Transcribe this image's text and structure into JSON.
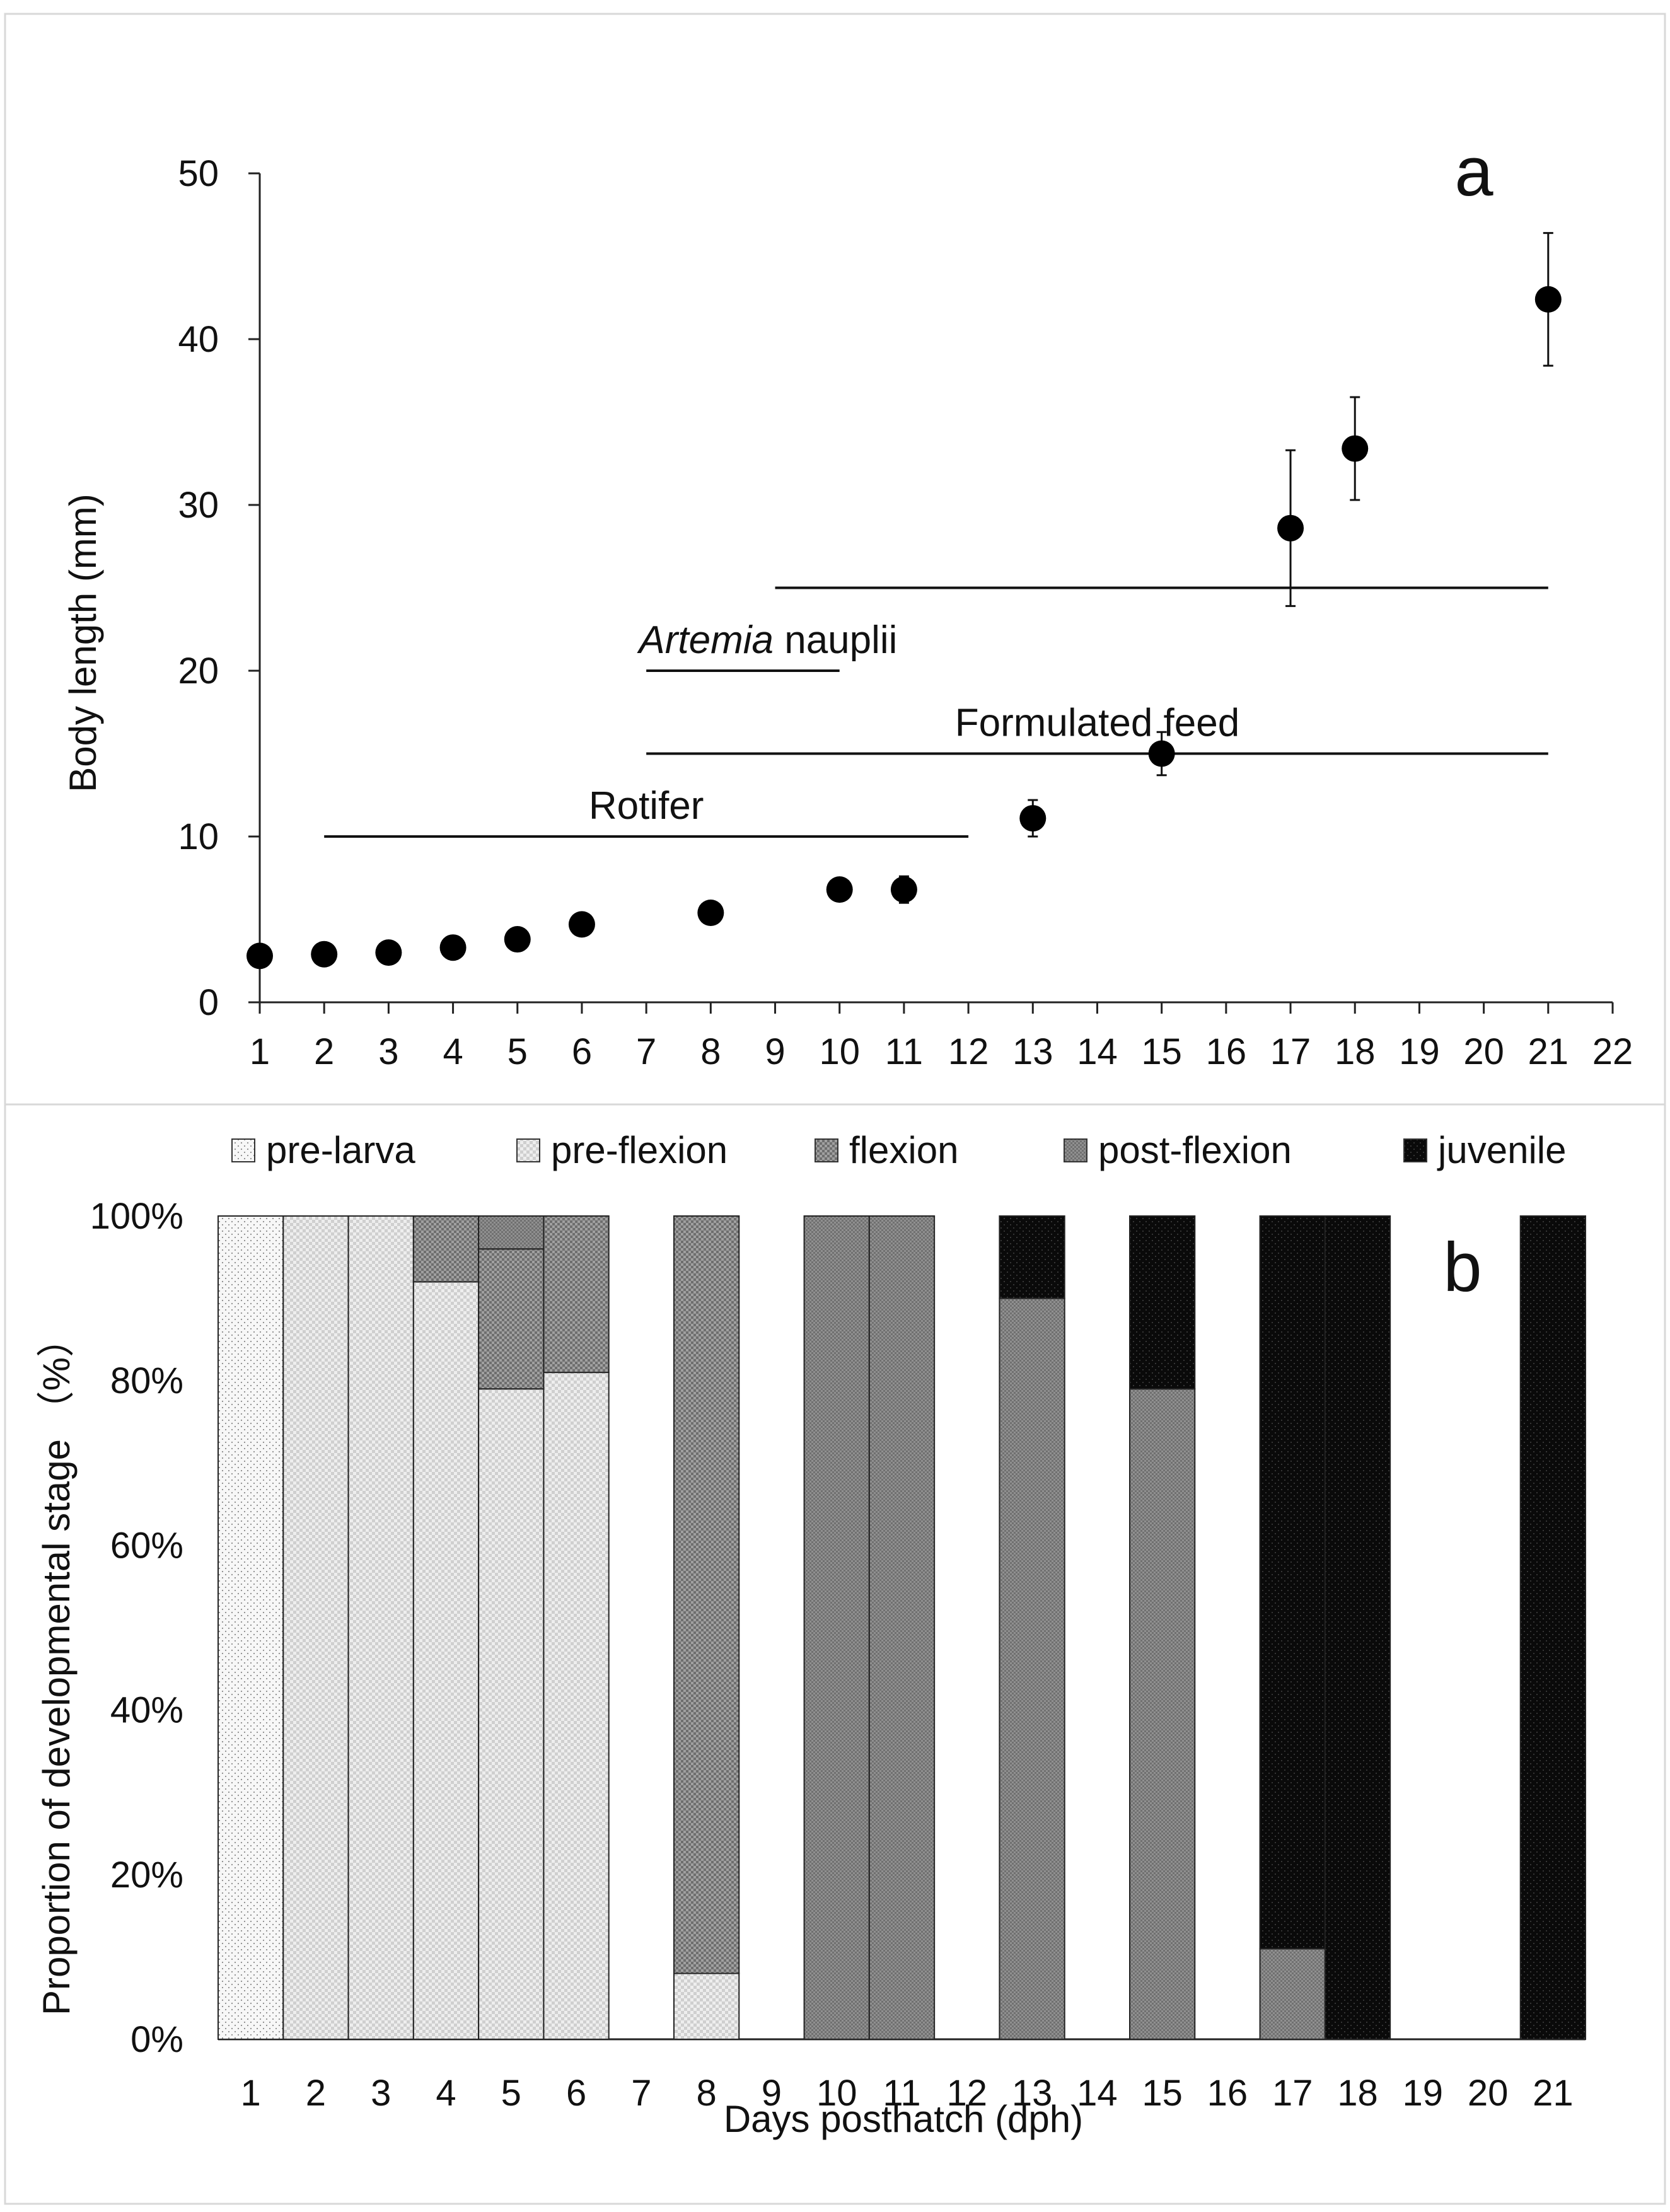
{
  "chart_data": [
    {
      "panel": "a",
      "type": "scatter",
      "panel_label": "a",
      "ylabel": "Body length (mm)",
      "xlabel": "",
      "ylim": [
        0,
        50
      ],
      "xlim": [
        1,
        22
      ],
      "yticks": [
        0,
        10,
        20,
        30,
        40,
        50
      ],
      "xticks": [
        1,
        2,
        3,
        4,
        5,
        6,
        7,
        8,
        9,
        10,
        11,
        12,
        13,
        14,
        15,
        16,
        17,
        18,
        19,
        20,
        21,
        22
      ],
      "points": [
        {
          "x": 1,
          "y": 2.8,
          "err": 0
        },
        {
          "x": 2,
          "y": 2.9,
          "err": 0
        },
        {
          "x": 3,
          "y": 3.0,
          "err": 0
        },
        {
          "x": 4,
          "y": 3.3,
          "err": 0
        },
        {
          "x": 5,
          "y": 3.8,
          "err": 0
        },
        {
          "x": 6,
          "y": 4.7,
          "err": 0
        },
        {
          "x": 8,
          "y": 5.4,
          "err": 0
        },
        {
          "x": 10,
          "y": 6.8,
          "err": 0
        },
        {
          "x": 11,
          "y": 6.8,
          "err": 0.8
        },
        {
          "x": 13,
          "y": 11.1,
          "err": 1.1
        },
        {
          "x": 15,
          "y": 15.0,
          "err": 1.3
        },
        {
          "x": 17,
          "y": 28.6,
          "err": 4.7
        },
        {
          "x": 18,
          "y": 33.4,
          "err": 3.1
        },
        {
          "x": 21,
          "y": 42.4,
          "err": 4.0
        }
      ],
      "feeding_periods": [
        {
          "label": "Rotifer",
          "label_italic": "",
          "label_rest": "Rotifer",
          "start": 2,
          "end": 12,
          "y": 10
        },
        {
          "label": "Formulated feed",
          "label_italic": "",
          "label_rest": "Formulated feed",
          "start": 7,
          "end": 21,
          "y": 15
        },
        {
          "label": "Artemia nauplii",
          "label_italic": "Artemia",
          "label_rest": " nauplii",
          "start": 7,
          "end": 10,
          "y": 20
        },
        {
          "label": "",
          "label_italic": "",
          "label_rest": "",
          "start": 9,
          "end": 21,
          "y": 25
        }
      ]
    },
    {
      "panel": "b",
      "type": "bar",
      "stacked": true,
      "panel_label": "b",
      "ylabel": "Proportion of developmental stage （%）",
      "xlabel": "Days posthatch (dph)",
      "ylim": [
        0,
        100
      ],
      "yticks": [
        "0%",
        "20%",
        "40%",
        "60%",
        "80%",
        "100%"
      ],
      "categories": [
        "1",
        "2",
        "3",
        "4",
        "5",
        "6",
        "7",
        "8",
        "9",
        "10",
        "11",
        "12",
        "13",
        "14",
        "15",
        "16",
        "17",
        "18",
        "19",
        "20",
        "21"
      ],
      "legend_position": "top",
      "series": [
        {
          "name": "pre-larva",
          "color": "#f4f4f4",
          "values": [
            100,
            0,
            0,
            0,
            0,
            0,
            0,
            0,
            0,
            0,
            0,
            0,
            0,
            0,
            0,
            0,
            0,
            0,
            0,
            0,
            0
          ]
        },
        {
          "name": "pre-flexion",
          "color": "#e4e4e4",
          "values": [
            0,
            100,
            100,
            92,
            79,
            81,
            0,
            8,
            0,
            0,
            0,
            0,
            0,
            0,
            0,
            0,
            0,
            0,
            0,
            0,
            0
          ]
        },
        {
          "name": "flexion",
          "color": "#9a9a9a",
          "values": [
            0,
            0,
            0,
            8,
            17,
            19,
            0,
            92,
            0,
            0,
            0,
            0,
            0,
            0,
            0,
            0,
            0,
            0,
            0,
            0,
            0
          ]
        },
        {
          "name": "post-flexion",
          "color": "#8a8a8a",
          "values": [
            0,
            0,
            0,
            0,
            4,
            0,
            0,
            0,
            0,
            100,
            100,
            0,
            90,
            0,
            79,
            0,
            11,
            0,
            0,
            0,
            0
          ]
        },
        {
          "name": "juvenile",
          "color": "#111111",
          "values": [
            0,
            0,
            0,
            0,
            0,
            0,
            0,
            0,
            0,
            0,
            0,
            0,
            10,
            0,
            21,
            0,
            89,
            100,
            0,
            0,
            100
          ]
        }
      ]
    }
  ]
}
